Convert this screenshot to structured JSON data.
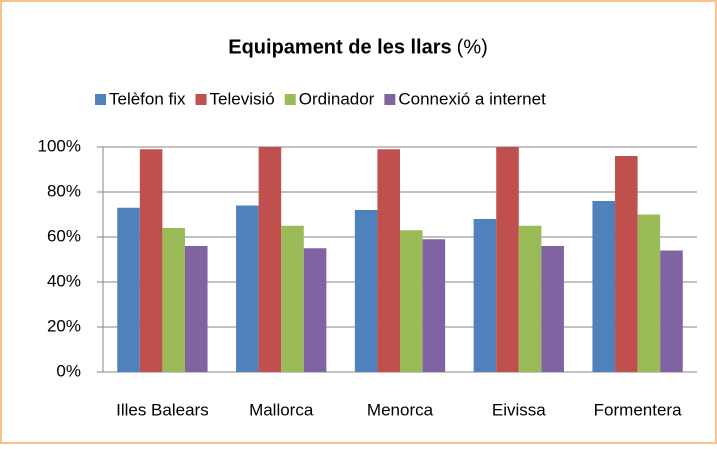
{
  "chart_data": {
    "type": "bar",
    "title": "Equipament de les llars",
    "title_unit": "(%)",
    "categories": [
      "Illes Balears",
      "Mallorca",
      "Menorca",
      "Eivissa",
      "Formentera"
    ],
    "series": [
      {
        "name": "Telèfon fix",
        "color": "#4f81bd",
        "values": [
          73,
          74,
          72,
          68,
          76
        ]
      },
      {
        "name": "Televisió",
        "color": "#c0504d",
        "values": [
          99,
          100,
          99,
          100,
          96
        ]
      },
      {
        "name": "Ordinador",
        "color": "#9bbb59",
        "values": [
          64,
          65,
          63,
          65,
          70
        ]
      },
      {
        "name": "Connexió a internet",
        "color": "#8064a2",
        "values": [
          56,
          55,
          59,
          56,
          54
        ]
      }
    ],
    "ylim": [
      0,
      100
    ],
    "yticks": [
      {
        "value": 0,
        "label": "0%"
      },
      {
        "value": 20,
        "label": "20%"
      },
      {
        "value": 40,
        "label": "40%"
      },
      {
        "value": 60,
        "label": "60%"
      },
      {
        "value": 80,
        "label": "80%"
      },
      {
        "value": 100,
        "label": "100%"
      }
    ],
    "grid": true,
    "legend": "top"
  }
}
